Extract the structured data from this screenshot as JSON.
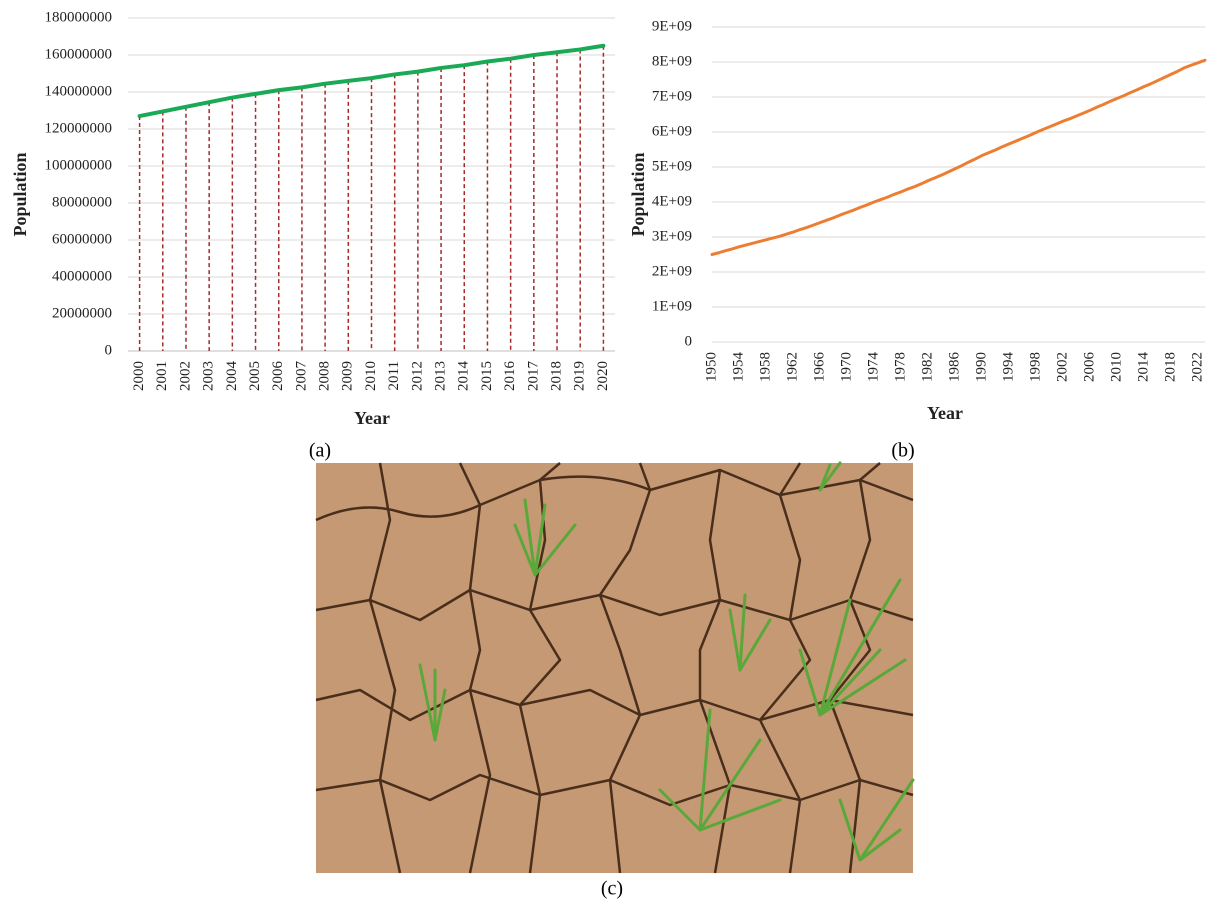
{
  "chart_data": [
    {
      "type": "line",
      "caption": "(a)",
      "x_label": "Year",
      "y_label": "Population",
      "categories": [
        "2000",
        "2001",
        "2002",
        "2003",
        "2004",
        "2005",
        "2006",
        "2007",
        "2008",
        "2009",
        "2010",
        "2011",
        "2012",
        "2013",
        "2014",
        "2015",
        "2016",
        "2017",
        "2018",
        "2019",
        "2020"
      ],
      "values": [
        127000000,
        129500000,
        132000000,
        134500000,
        137000000,
        139000000,
        141000000,
        142500000,
        144500000,
        146000000,
        147500000,
        149500000,
        151000000,
        153000000,
        154500000,
        156500000,
        158000000,
        160000000,
        161500000,
        163000000,
        165000000
      ],
      "color": "#1aaa55",
      "drop_lines": true,
      "drop_line_color": "#a52a2a",
      "ylim": [
        0,
        180000000
      ],
      "yticks": [
        0,
        20000000,
        40000000,
        60000000,
        80000000,
        100000000,
        120000000,
        140000000,
        160000000,
        180000000
      ],
      "grid": true
    },
    {
      "type": "line",
      "caption": "(b)",
      "x_label": "Year",
      "y_label": "Population",
      "axis_label_color": "#b22222",
      "x": [
        1950,
        1951,
        1952,
        1953,
        1954,
        1955,
        1956,
        1957,
        1958,
        1959,
        1960,
        1961,
        1962,
        1963,
        1964,
        1965,
        1966,
        1967,
        1968,
        1969,
        1970,
        1971,
        1972,
        1973,
        1974,
        1975,
        1976,
        1977,
        1978,
        1979,
        1980,
        1981,
        1982,
        1983,
        1984,
        1985,
        1986,
        1987,
        1988,
        1989,
        1990,
        1991,
        1992,
        1993,
        1994,
        1995,
        1996,
        1997,
        1998,
        1999,
        2000,
        2001,
        2002,
        2003,
        2004,
        2005,
        2006,
        2007,
        2008,
        2009,
        2010,
        2011,
        2012,
        2013,
        2014,
        2015,
        2016,
        2017,
        2018,
        2019,
        2020,
        2021,
        2022,
        2023
      ],
      "values": [
        2500000000,
        2550000000,
        2610000000,
        2660000000,
        2720000000,
        2770000000,
        2820000000,
        2870000000,
        2920000000,
        2970000000,
        3020000000,
        3080000000,
        3140000000,
        3210000000,
        3270000000,
        3340000000,
        3410000000,
        3480000000,
        3550000000,
        3630000000,
        3700000000,
        3770000000,
        3850000000,
        3920000000,
        4000000000,
        4070000000,
        4140000000,
        4220000000,
        4290000000,
        4370000000,
        4440000000,
        4520000000,
        4610000000,
        4690000000,
        4770000000,
        4860000000,
        4950000000,
        5040000000,
        5140000000,
        5230000000,
        5330000000,
        5410000000,
        5490000000,
        5580000000,
        5660000000,
        5740000000,
        5820000000,
        5900000000,
        5990000000,
        6070000000,
        6150000000,
        6230000000,
        6310000000,
        6380000000,
        6460000000,
        6540000000,
        6620000000,
        6710000000,
        6790000000,
        6880000000,
        6960000000,
        7040000000,
        7130000000,
        7210000000,
        7300000000,
        7380000000,
        7470000000,
        7560000000,
        7650000000,
        7740000000,
        7840000000,
        7910000000,
        7980000000,
        8050000000
      ],
      "color": "#ed7d31",
      "xlim": [
        1950,
        2023
      ],
      "xticks": [
        1950,
        1954,
        1958,
        1962,
        1966,
        1970,
        1974,
        1978,
        1982,
        1986,
        1990,
        1994,
        1998,
        2002,
        2006,
        2010,
        2014,
        2018,
        2022
      ],
      "ylim": [
        0,
        9000000000
      ],
      "yticks": [
        0,
        {
          "value": 1000000000,
          "label": "1E+09"
        },
        {
          "value": 2000000000,
          "label": "2E+09"
        },
        {
          "value": 3000000000,
          "label": "3E+09"
        },
        {
          "value": 4000000000,
          "label": "4E+09"
        },
        {
          "value": 5000000000,
          "label": "5E+09"
        },
        {
          "value": 6000000000,
          "label": "6E+09"
        },
        {
          "value": 7000000000,
          "label": "7E+09"
        },
        {
          "value": 8000000000,
          "label": "8E+09"
        },
        {
          "value": 9000000000,
          "label": "9E+09"
        }
      ],
      "grid": true
    }
  ],
  "photo": {
    "caption": "(c)"
  }
}
